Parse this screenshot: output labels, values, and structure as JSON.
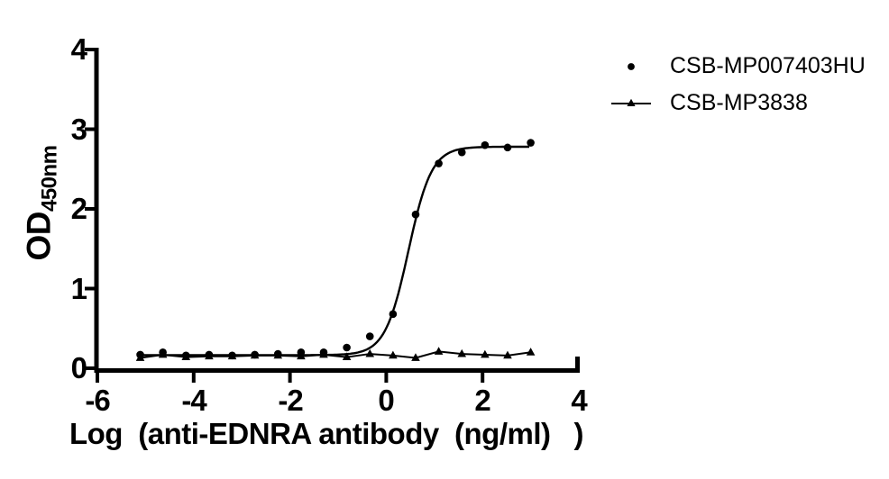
{
  "chart_data": {
    "type": "scatter",
    "title": "",
    "xlabel": "Log  (anti-EDNRA antibody  (ng/ml)   )",
    "ylabel": "OD450nm",
    "ylabel_base": "OD",
    "ylabel_sub": "450nm",
    "xlim": [
      -6,
      4
    ],
    "ylim": [
      0,
      4
    ],
    "x_ticks": [
      -6,
      -4,
      -2,
      0,
      2,
      4
    ],
    "y_ticks": [
      0,
      1,
      2,
      3,
      4
    ],
    "grid": false,
    "legend_position": "top-right",
    "colors": {
      "foreground": "#000000",
      "background": "#ffffff"
    },
    "series": [
      {
        "name": "CSB-MP007403HU",
        "marker": "circle",
        "line": "4pl-fit",
        "fit": {
          "bottom": 0.165,
          "top": 2.78,
          "logEC50": 0.46,
          "hill": 1.8
        },
        "points": [
          [
            -5.11,
            0.17
          ],
          [
            -4.64,
            0.2
          ],
          [
            -4.16,
            0.16
          ],
          [
            -3.68,
            0.17
          ],
          [
            -3.2,
            0.16
          ],
          [
            -2.73,
            0.17
          ],
          [
            -2.25,
            0.18
          ],
          [
            -1.77,
            0.2
          ],
          [
            -1.3,
            0.2
          ],
          [
            -0.82,
            0.26
          ],
          [
            -0.34,
            0.4
          ],
          [
            0.14,
            0.68
          ],
          [
            0.61,
            1.93
          ],
          [
            1.09,
            2.57
          ],
          [
            1.57,
            2.71
          ],
          [
            2.05,
            2.8
          ],
          [
            2.52,
            2.77
          ],
          [
            3.0,
            2.83
          ]
        ]
      },
      {
        "name": "CSB-MP3838",
        "marker": "triangle",
        "line": "straight",
        "points": [
          [
            -5.11,
            0.13
          ],
          [
            -4.64,
            0.17
          ],
          [
            -4.16,
            0.14
          ],
          [
            -3.68,
            0.15
          ],
          [
            -3.2,
            0.15
          ],
          [
            -2.73,
            0.16
          ],
          [
            -2.25,
            0.16
          ],
          [
            -1.77,
            0.15
          ],
          [
            -1.3,
            0.17
          ],
          [
            -0.82,
            0.14
          ],
          [
            -0.34,
            0.18
          ],
          [
            0.14,
            0.16
          ],
          [
            0.61,
            0.13
          ],
          [
            1.09,
            0.21
          ],
          [
            1.57,
            0.18
          ],
          [
            2.05,
            0.17
          ],
          [
            2.52,
            0.16
          ],
          [
            3.0,
            0.2
          ]
        ]
      }
    ]
  },
  "axes": {
    "x_tick_labels": [
      "-6",
      "-4",
      "-2",
      "0",
      "2",
      "4"
    ],
    "y_tick_labels": [
      "4",
      "3",
      "2",
      "1",
      "0"
    ]
  }
}
